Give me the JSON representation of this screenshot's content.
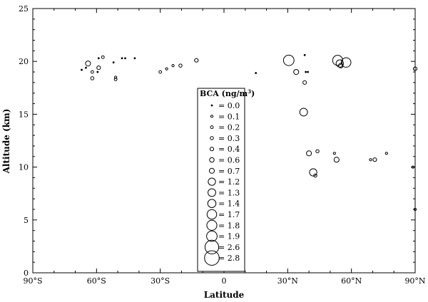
{
  "chart_data": {
    "type": "scatter",
    "title": "",
    "xlabel": "Latitude",
    "ylabel": "Altitude (km)",
    "xlim": [
      -90,
      90
    ],
    "ylim": [
      0,
      25
    ],
    "x_ticks": [
      {
        "value": -90,
        "label": "90°S"
      },
      {
        "value": -60,
        "label": "60°S"
      },
      {
        "value": -30,
        "label": "30°S"
      },
      {
        "value": 0,
        "label": "0"
      },
      {
        "value": 30,
        "label": "30°N"
      },
      {
        "value": 60,
        "label": "60°N"
      },
      {
        "value": 90,
        "label": "90°N"
      }
    ],
    "y_ticks": [
      {
        "value": 0,
        "label": "0"
      },
      {
        "value": 5,
        "label": "5"
      },
      {
        "value": 10,
        "label": "10"
      },
      {
        "value": 15,
        "label": "15"
      },
      {
        "value": 20,
        "label": "20"
      },
      {
        "value": 25,
        "label": "25"
      }
    ],
    "legend": {
      "title_prefix": "BCA (ng/m",
      "title_sup": "3",
      "title_suffix": ")",
      "location": "center",
      "entries": [
        {
          "value": 0.0,
          "label": "= 0.0"
        },
        {
          "value": 0.1,
          "label": "= 0.1"
        },
        {
          "value": 0.2,
          "label": "= 0.2"
        },
        {
          "value": 0.3,
          "label": "= 0.3"
        },
        {
          "value": 0.4,
          "label": "= 0.4"
        },
        {
          "value": 0.6,
          "label": "= 0.6"
        },
        {
          "value": 0.7,
          "label": "= 0.7"
        },
        {
          "value": 1.2,
          "label": "= 1.2"
        },
        {
          "value": 1.3,
          "label": "= 1.3"
        },
        {
          "value": 1.4,
          "label": "= 1.4"
        },
        {
          "value": 1.7,
          "label": "= 1.7"
        },
        {
          "value": 1.8,
          "label": "= 1.8"
        },
        {
          "value": 1.9,
          "label": "= 1.9"
        },
        {
          "value": 2.6,
          "label": "= 2.6"
        },
        {
          "value": 2.8,
          "label": "= 2.8"
        }
      ]
    },
    "points": [
      {
        "lat": -67.0,
        "alt": 19.2,
        "bca": 0.0
      },
      {
        "lat": -65.0,
        "alt": 19.4,
        "bca": 0.0
      },
      {
        "lat": -64.0,
        "alt": 19.8,
        "bca": 0.7
      },
      {
        "lat": -62.0,
        "alt": 19.0,
        "bca": 0.2
      },
      {
        "lat": -62.0,
        "alt": 18.4,
        "bca": 0.3
      },
      {
        "lat": -59.0,
        "alt": 19.4,
        "bca": 0.4
      },
      {
        "lat": -59.0,
        "alt": 20.3,
        "bca": 0.0
      },
      {
        "lat": -59.5,
        "alt": 19.0,
        "bca": 0.0
      },
      {
        "lat": -57.0,
        "alt": 20.4,
        "bca": 0.2
      },
      {
        "lat": -52.0,
        "alt": 19.9,
        "bca": 0.0
      },
      {
        "lat": -51.0,
        "alt": 18.5,
        "bca": 0.1
      },
      {
        "lat": -51.0,
        "alt": 18.3,
        "bca": 0.2
      },
      {
        "lat": -48.0,
        "alt": 20.3,
        "bca": 0.0
      },
      {
        "lat": -46.5,
        "alt": 20.3,
        "bca": 0.0
      },
      {
        "lat": -42.0,
        "alt": 20.3,
        "bca": 0.0
      },
      {
        "lat": -30.0,
        "alt": 19.0,
        "bca": 0.2
      },
      {
        "lat": -27.0,
        "alt": 19.3,
        "bca": 0.1
      },
      {
        "lat": -24.0,
        "alt": 19.6,
        "bca": 0.1
      },
      {
        "lat": -20.5,
        "alt": 19.6,
        "bca": 0.3
      },
      {
        "lat": -13.0,
        "alt": 20.1,
        "bca": 0.4
      },
      {
        "lat": 15.0,
        "alt": 18.9,
        "bca": 0.0
      },
      {
        "lat": 30.5,
        "alt": 20.1,
        "bca": 1.9
      },
      {
        "lat": 34.0,
        "alt": 19.0,
        "bca": 0.7
      },
      {
        "lat": 38.0,
        "alt": 20.6,
        "bca": 0.0
      },
      {
        "lat": 38.0,
        "alt": 18.0,
        "bca": 0.4
      },
      {
        "lat": 38.5,
        "alt": 19.0,
        "bca": 0.0
      },
      {
        "lat": 39.5,
        "alt": 19.0,
        "bca": 0.0
      },
      {
        "lat": 37.5,
        "alt": 15.2,
        "bca": 1.3
      },
      {
        "lat": 40.0,
        "alt": 11.3,
        "bca": 0.7
      },
      {
        "lat": 42.0,
        "alt": 9.5,
        "bca": 1.2
      },
      {
        "lat": 43.0,
        "alt": 9.2,
        "bca": 0.3
      },
      {
        "lat": 44.0,
        "alt": 11.5,
        "bca": 0.3
      },
      {
        "lat": 52.0,
        "alt": 11.3,
        "bca": 0.1
      },
      {
        "lat": 53.0,
        "alt": 10.7,
        "bca": 0.7
      },
      {
        "lat": 53.5,
        "alt": 20.1,
        "bca": 1.8
      },
      {
        "lat": 54.5,
        "alt": 19.8,
        "bca": 1.2
      },
      {
        "lat": 55.0,
        "alt": 19.6,
        "bca": 0.6
      },
      {
        "lat": 57.5,
        "alt": 19.9,
        "bca": 1.7
      },
      {
        "lat": 69.0,
        "alt": 10.7,
        "bca": 0.1
      },
      {
        "lat": 71.0,
        "alt": 10.7,
        "bca": 0.4
      },
      {
        "lat": 76.5,
        "alt": 11.3,
        "bca": 0.1
      },
      {
        "lat": 89.0,
        "alt": 10.0,
        "bca": 0.1
      },
      {
        "lat": 90.0,
        "alt": 19.3,
        "bca": 0.4
      },
      {
        "lat": 90.0,
        "alt": 6.0,
        "bca": 0.1
      }
    ]
  }
}
